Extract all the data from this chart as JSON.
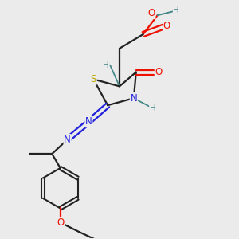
{
  "bg_color": "#ebebeb",
  "atom_colors": {
    "O": "#ee1100",
    "N": "#2222dd",
    "S": "#bbaa00",
    "C": "#222222",
    "H": "#448888"
  },
  "font_size_atom": 8.5
}
